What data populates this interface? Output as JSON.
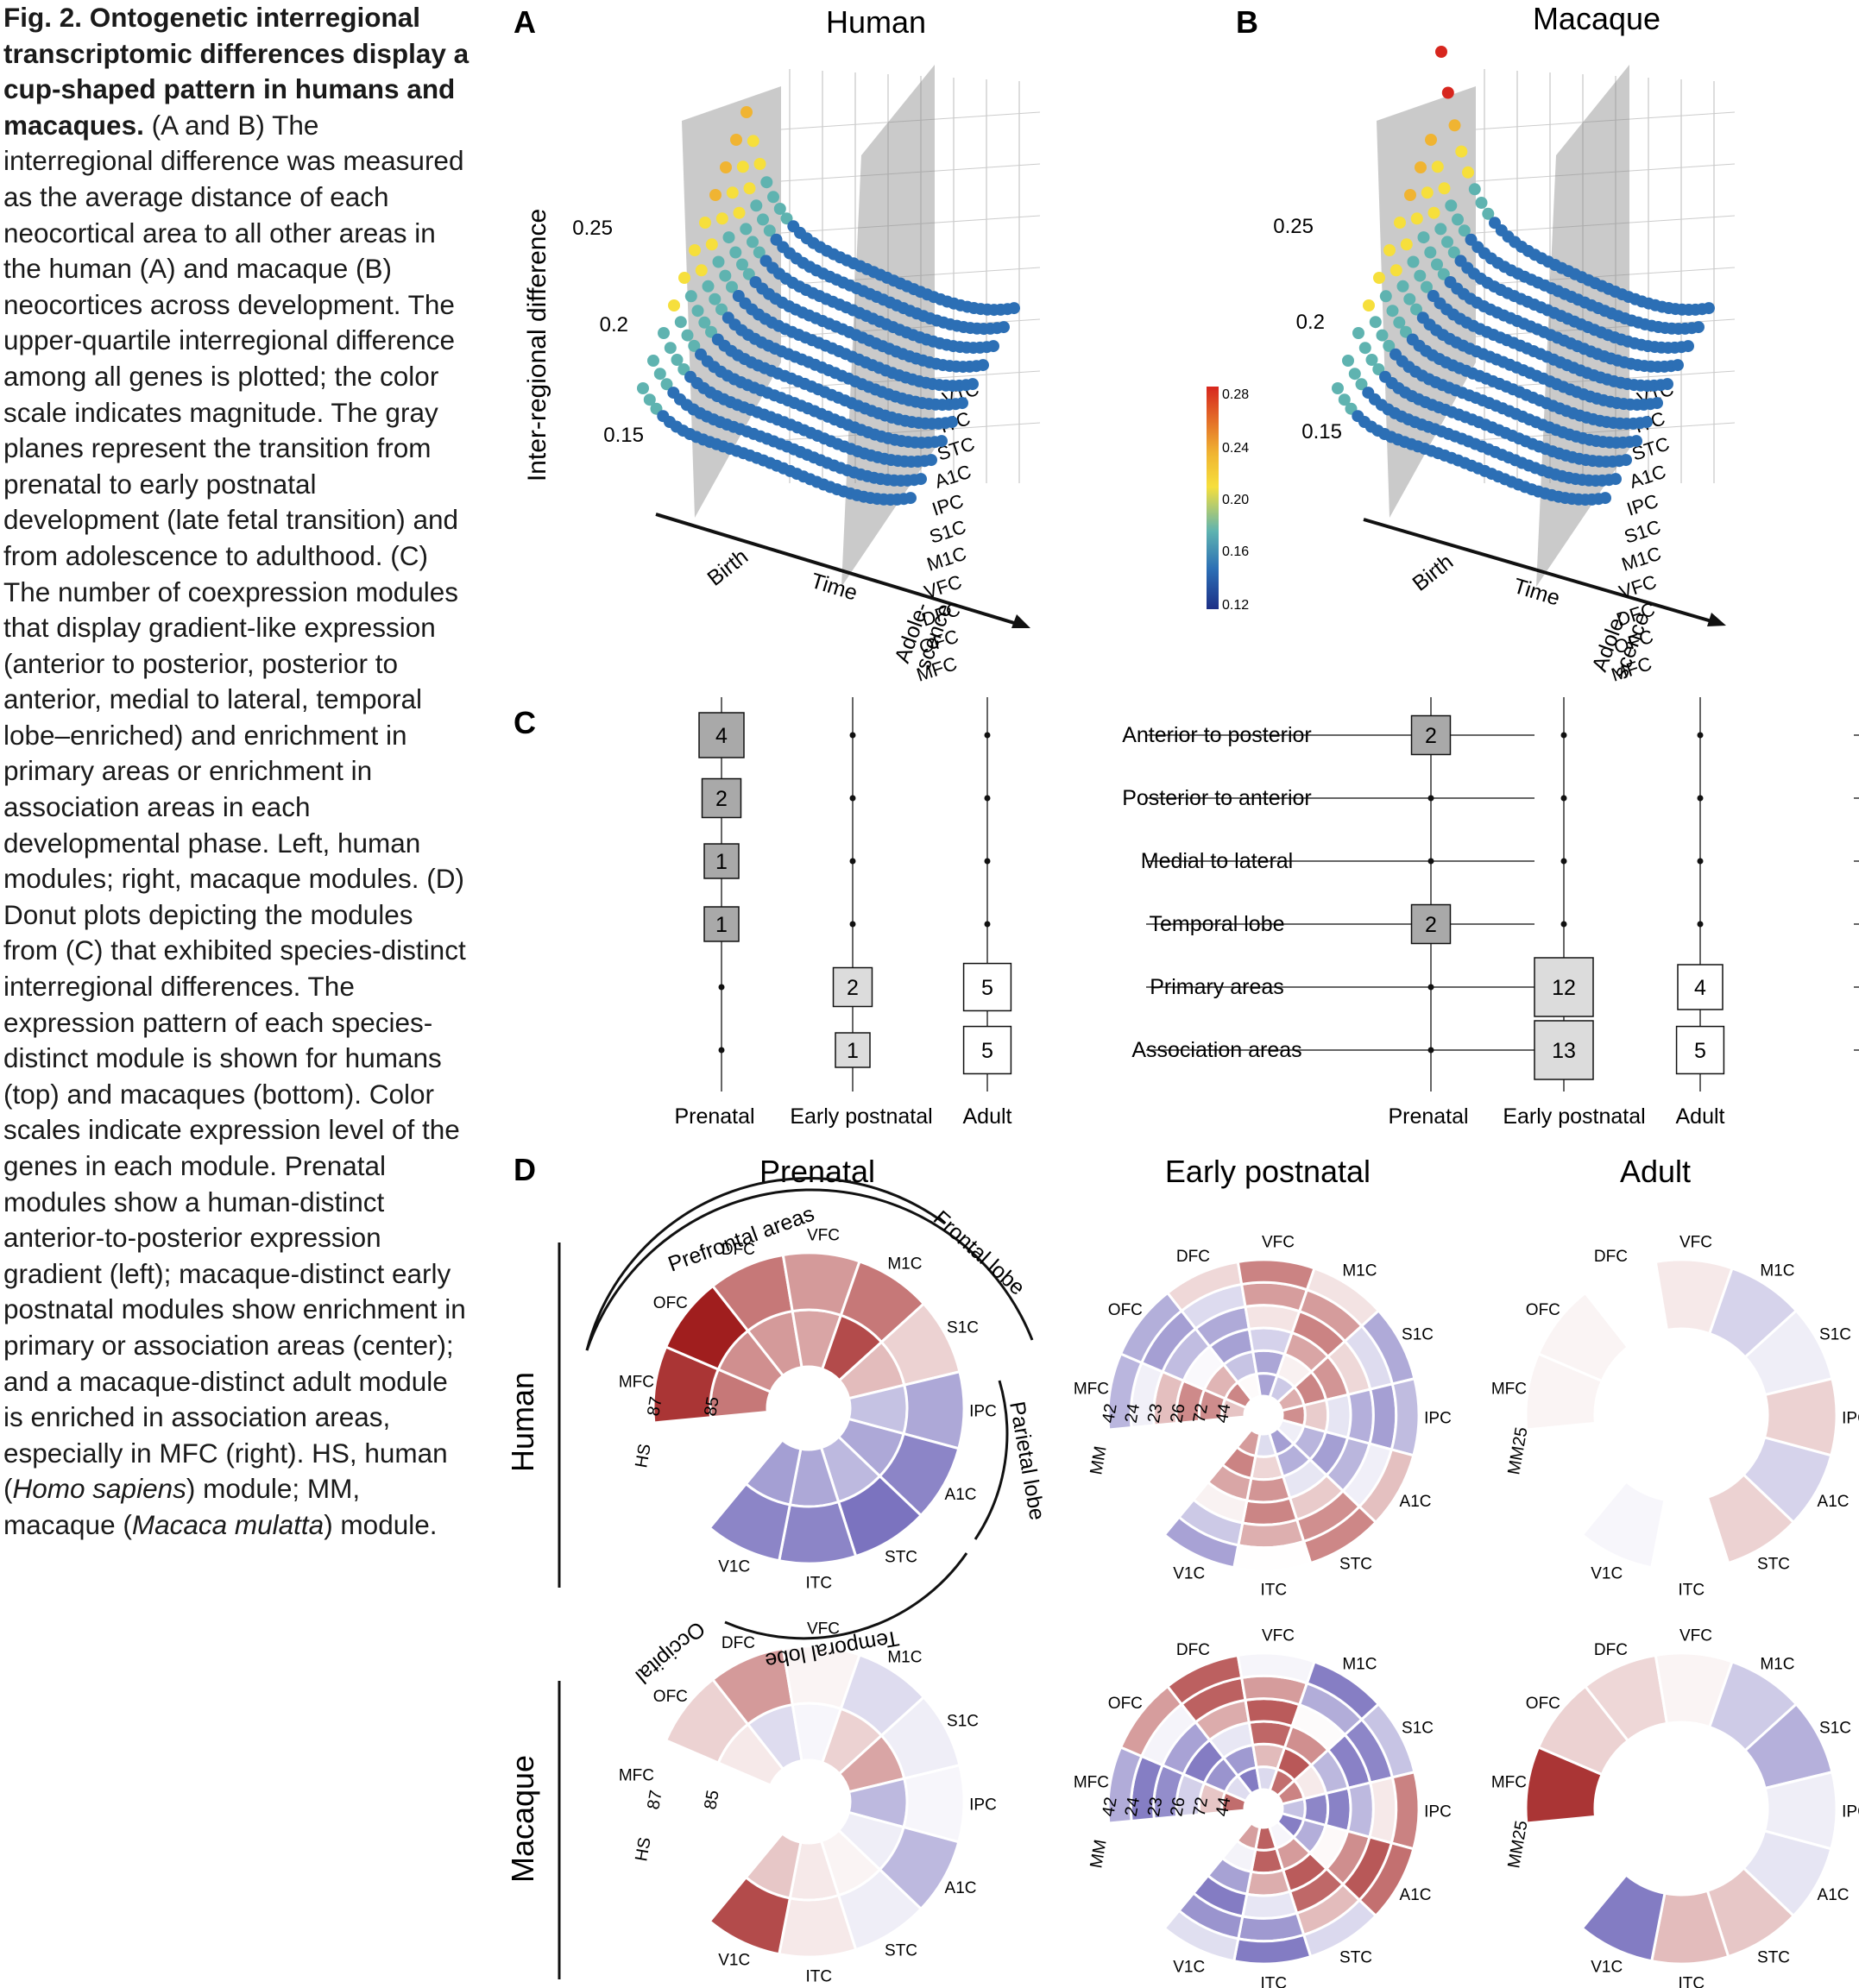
{
  "caption": {
    "lead": "Fig. 2. Ontogenetic interregional transcriptomic differences display a cup-shaped pattern in humans and macaques.",
    "body": " (A and B) The interregional difference was measured as the average distance of each neocortical area to all other areas in the human (A) and macaque (B) neocortices across development. The upper-quartile interregional difference among all genes is plotted; the color scale indicates magnitude. The gray planes represent the transition from prenatal to early postnatal development (late fetal transition) and from adolescence to adulthood. (C) The number of coexpression modules that display gradient-like expression (anterior to posterior, posterior to anterior, medial to lateral, temporal lobe–enriched) and enrichment in primary areas or enrichment in association areas in each developmental phase. Left, human modules; right, macaque modules. (D) Donut plots depicting the modules from (C) that exhibited species-distinct interregional differences. The expression pattern of each species-distinct module is shown for humans (top) and macaques (bottom). Color scales indicate expression level of the genes in each module. Prenatal modules show a human-distinct anterior-to-posterior expression gradient (left); macaque-distinct early postnatal modules show enrichment in primary or association areas (center); and a macaque-distinct adult module is enriched in association areas, especially in MFC (right). HS, human (",
    "hs_italic": "Homo sapiens",
    "mid": ") module; MM, macaque (",
    "mm_italic": "Macaca mulatta",
    "tail": ") module."
  },
  "panelA": {
    "letter": "A",
    "title": "Human",
    "ylabel": "Inter-regional difference",
    "yticks": [
      "0.25",
      "0.2",
      "0.15"
    ],
    "axis_birth": "Birth",
    "axis_time": "Time",
    "axis_adol1": "Adole-",
    "axis_adol2": "scence",
    "regions": [
      "V1C",
      "ITC",
      "STC",
      "A1C",
      "IPC",
      "S1C",
      "M1C",
      "VFC",
      "DFC",
      "OFC",
      "MFC"
    ]
  },
  "panelB": {
    "letter": "B",
    "title": "Macaque",
    "yticks": [
      "0.25",
      "0.2",
      "0.15"
    ],
    "axis_birth": "Birth",
    "axis_time": "Time",
    "axis_adol1": "Adole-",
    "axis_adol2": "scence",
    "regions": [
      "V1C",
      "ITC",
      "STC",
      "A1C",
      "IPC",
      "S1C",
      "M1C",
      "VFC",
      "DFC",
      "OFC",
      "MFC"
    ]
  },
  "colorbar": {
    "ticks": [
      "0.28",
      "0.24",
      "0.20",
      "0.16",
      "0.12"
    ],
    "colors": [
      "#d7261e",
      "#f0b432",
      "#f6df3c",
      "#5fb3b0",
      "#2c6fb5",
      "#1d2f86"
    ]
  },
  "panelC": {
    "letter": "C",
    "rows": [
      "Anterior to posterior",
      "Posterior to anterior",
      "Medial to lateral",
      "Temporal lobe",
      "Primary areas",
      "Association areas"
    ],
    "columns": [
      "Prenatal",
      "Early postnatal",
      "Adult"
    ],
    "human": [
      [
        4,
        null,
        null
      ],
      [
        2,
        null,
        null
      ],
      [
        1,
        null,
        null
      ],
      [
        1,
        null,
        null
      ],
      [
        null,
        2,
        5
      ],
      [
        null,
        1,
        5
      ]
    ],
    "macaque": [
      [
        2,
        null,
        null
      ],
      [
        null,
        null,
        null
      ],
      [
        null,
        null,
        null
      ],
      [
        2,
        null,
        null
      ],
      [
        null,
        12,
        4
      ],
      [
        null,
        13,
        5
      ]
    ]
  },
  "panelD": {
    "letter": "D",
    "columns": [
      "Prenatal",
      "Early postnatal",
      "Adult"
    ],
    "species": [
      "Human",
      "Macaque"
    ],
    "areas": [
      "MFC",
      "OFC",
      "DFC",
      "VFC",
      "M1C",
      "S1C",
      "IPC",
      "A1C",
      "STC",
      "ITC",
      "V1C"
    ],
    "arcs": {
      "prefrontal": "Prefrontal areas",
      "frontal": "Frontal lobe",
      "parietal": "Parietal lobe",
      "temporal": "Temporal lobe",
      "occipital": "Occipital"
    },
    "prenatal_modules": [
      "87",
      "85"
    ],
    "prenatal_prefix": "HS",
    "early_modules": [
      "42",
      "24",
      "23",
      "26",
      "72",
      "44"
    ],
    "early_prefix": "MM",
    "adult_module": "MM25",
    "human_prenatal": {
      "r87": [
        0.9,
        1,
        0.6,
        0.45,
        0.6,
        0.2,
        -0.5,
        -0.7,
        -0.8,
        -0.7,
        -0.7
      ],
      "r85": [
        0.6,
        0.5,
        0.45,
        0.4,
        0.8,
        0.3,
        -0.35,
        -0.5,
        -0.4,
        -0.5,
        -0.55
      ]
    },
    "macaque_prenatal": {
      "r87": [
        0,
        0.2,
        0.45,
        0.05,
        -0.2,
        -0.1,
        -0.05,
        -0.4,
        -0.1,
        0.1,
        0.8
      ],
      "r85": [
        0,
        0.1,
        -0.2,
        -0.05,
        0.2,
        0.4,
        -0.4,
        -0.1,
        0.05,
        0.1,
        0.25
      ]
    }
  }
}
